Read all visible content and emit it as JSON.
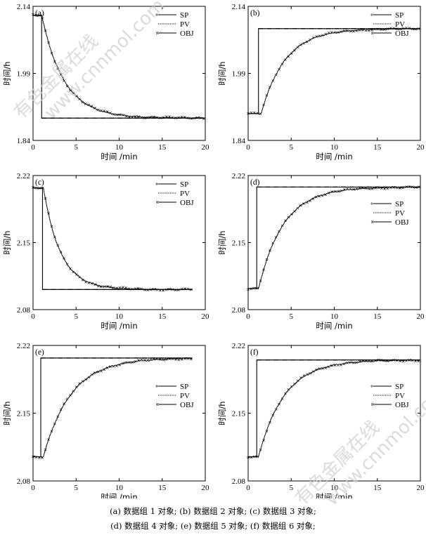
{
  "caption": {
    "line1": "(a) 数据组 1 对象; (b) 数据组 2 对象; (c) 数据组 3 对象;",
    "line2": "(d) 数据组 4 对象; (e) 数据组 5 对象; (f) 数据组 6 对象;"
  },
  "watermark": [
    "有色金属在线",
    "www.cnnmol.com"
  ],
  "legend_labels": [
    "SP",
    "PV",
    "OBJ"
  ],
  "chart_data": [
    {
      "id": "a",
      "type": "line",
      "panel_label": "(a)",
      "xlabel": "时间 /min",
      "ylabel": "时间/h",
      "xlim": [
        0,
        20
      ],
      "ylim": [
        1.84,
        2.14
      ],
      "xticks": [
        0,
        5,
        10,
        15,
        20
      ],
      "yticks": [
        1.84,
        1.99,
        2.14
      ],
      "y_tick_labels": [
        "1.84",
        "1.99",
        "2.14"
      ],
      "legend_position": "top-right",
      "x_end": 20,
      "series": [
        {
          "name": "SP",
          "y0": 2.12,
          "y1": 1.89,
          "step_at": 1.0
        },
        {
          "name": "PV",
          "y0": 2.12,
          "y1": 1.89,
          "start": 1.0,
          "tau": 2.6
        },
        {
          "name": "OBJ",
          "y0": 2.12,
          "y1": 1.89,
          "start": 1.0,
          "tau": 2.6
        }
      ]
    },
    {
      "id": "b",
      "type": "line",
      "panel_label": "(b)",
      "xlabel": "时间 /min",
      "ylabel": "时间/h",
      "xlim": [
        0,
        20
      ],
      "ylim": [
        1.84,
        2.14
      ],
      "xticks": [
        0,
        5,
        10,
        15,
        20
      ],
      "yticks": [
        1.84,
        1.99,
        2.14
      ],
      "y_tick_labels": [
        "1.84",
        "1.99",
        "2.14"
      ],
      "legend_position": "top-right",
      "x_end": 20,
      "series": [
        {
          "name": "SP",
          "y0": 1.9,
          "y1": 2.09,
          "step_at": 1.2
        },
        {
          "name": "PV",
          "y0": 1.9,
          "y1": 2.09,
          "start": 1.5,
          "tau": 2.8
        },
        {
          "name": "OBJ",
          "y0": 1.9,
          "y1": 2.09,
          "start": 1.5,
          "tau": 2.8
        }
      ]
    },
    {
      "id": "c",
      "type": "line",
      "panel_label": "(c)",
      "xlabel": "时间 /min",
      "ylabel": "时间/h",
      "xlim": [
        0,
        20
      ],
      "ylim": [
        2.08,
        2.22
      ],
      "xticks": [
        0,
        5,
        10,
        15,
        20
      ],
      "yticks": [
        2.08,
        2.15,
        2.22
      ],
      "y_tick_labels": [
        "2.08",
        "2.15",
        "2.22"
      ],
      "legend_position": "top-right",
      "x_end": 18.5,
      "series": [
        {
          "name": "SP",
          "y0": 2.207,
          "y1": 2.101,
          "step_at": 1.1
        },
        {
          "name": "PV",
          "y0": 2.207,
          "y1": 2.101,
          "start": 1.2,
          "tau": 2.0
        },
        {
          "name": "OBJ",
          "y0": 2.207,
          "y1": 2.101,
          "start": 1.2,
          "tau": 2.0
        }
      ]
    },
    {
      "id": "d",
      "type": "line",
      "panel_label": "(d)",
      "xlabel": "时间 /min",
      "ylabel": "时间/h",
      "xlim": [
        0,
        20
      ],
      "ylim": [
        2.08,
        2.22
      ],
      "xticks": [
        0,
        5,
        10,
        15,
        20
      ],
      "yticks": [
        2.08,
        2.15,
        2.22
      ],
      "y_tick_labels": [
        "2.08",
        "2.15",
        "2.22"
      ],
      "legend_position": "right",
      "x_end": 20,
      "series": [
        {
          "name": "SP",
          "y0": 2.102,
          "y1": 2.208,
          "step_at": 1.0
        },
        {
          "name": "PV",
          "y0": 2.102,
          "y1": 2.208,
          "start": 1.2,
          "tau": 2.9
        },
        {
          "name": "OBJ",
          "y0": 2.102,
          "y1": 2.208,
          "start": 1.2,
          "tau": 2.9
        }
      ]
    },
    {
      "id": "e",
      "type": "line",
      "panel_label": "(e)",
      "xlabel": "时间 /min",
      "ylabel": "时间/h",
      "xlim": [
        0,
        20
      ],
      "ylim": [
        2.08,
        2.22
      ],
      "xticks": [
        0,
        5,
        10,
        15,
        20
      ],
      "yticks": [
        2.08,
        2.15,
        2.22
      ],
      "y_tick_labels": [
        "2.08",
        "2.15",
        "2.22"
      ],
      "legend_position": "right",
      "x_end": 18.5,
      "series": [
        {
          "name": "SP",
          "y0": 2.105,
          "y1": 2.207,
          "step_at": 0.9
        },
        {
          "name": "PV",
          "y0": 2.105,
          "y1": 2.207,
          "start": 1.2,
          "tau": 3.2
        },
        {
          "name": "OBJ",
          "y0": 2.105,
          "y1": 2.207,
          "start": 1.2,
          "tau": 3.2
        }
      ]
    },
    {
      "id": "f",
      "type": "line",
      "panel_label": "(f)",
      "xlabel": "时间 /min",
      "ylabel": "时间/h",
      "xlim": [
        0,
        20
      ],
      "ylim": [
        2.08,
        2.22
      ],
      "xticks": [
        0,
        5,
        10,
        15,
        20
      ],
      "yticks": [
        2.08,
        2.15,
        2.22
      ],
      "y_tick_labels": [
        "2.08",
        "2.15",
        "2.22"
      ],
      "legend_position": "right",
      "x_end": 20,
      "series": [
        {
          "name": "SP",
          "y0": 2.105,
          "y1": 2.205,
          "step_at": 1.0
        },
        {
          "name": "PV",
          "y0": 2.105,
          "y1": 2.205,
          "start": 1.2,
          "tau": 3.0
        },
        {
          "name": "OBJ",
          "y0": 2.105,
          "y1": 2.205,
          "start": 1.2,
          "tau": 3.0
        }
      ]
    }
  ]
}
